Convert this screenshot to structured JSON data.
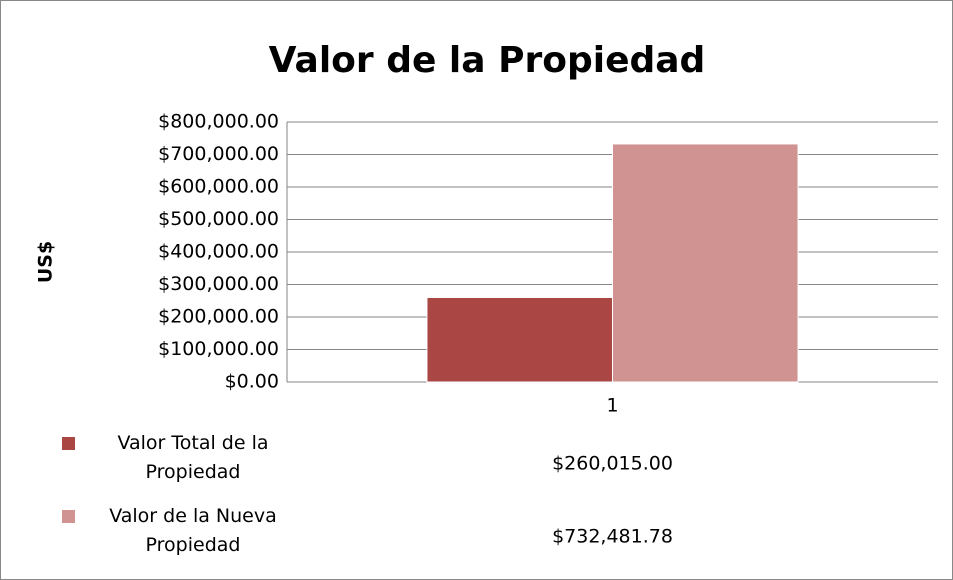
{
  "chart_data": {
    "type": "bar",
    "title": "Valor de la Propiedad",
    "y_label": "US$",
    "categories": [
      "1"
    ],
    "series": [
      {
        "name": "Valor Total de la Propiedad",
        "color": "#aa4643",
        "values": [
          260015.0
        ],
        "value_labels": [
          "$260,015.00"
        ]
      },
      {
        "name": "Valor de la Nueva Propiedad",
        "color": "#d19392",
        "values": [
          732481.78
        ],
        "value_labels": [
          "$732,481.78"
        ]
      }
    ],
    "ylim": [
      0,
      800000
    ],
    "yticks": [
      {
        "value": 0,
        "label": "$0.00"
      },
      {
        "value": 100000,
        "label": "$100,000.00"
      },
      {
        "value": 200000,
        "label": "$200,000.00"
      },
      {
        "value": 300000,
        "label": "$300,000.00"
      },
      {
        "value": 400000,
        "label": "$400,000.00"
      },
      {
        "value": 500000,
        "label": "$500,000.00"
      },
      {
        "value": 600000,
        "label": "$600,000.00"
      },
      {
        "value": 700000,
        "label": "$700,000.00"
      },
      {
        "value": 800000,
        "label": "$800,000.00"
      }
    ],
    "grid": true,
    "legend": "bottom-left"
  }
}
